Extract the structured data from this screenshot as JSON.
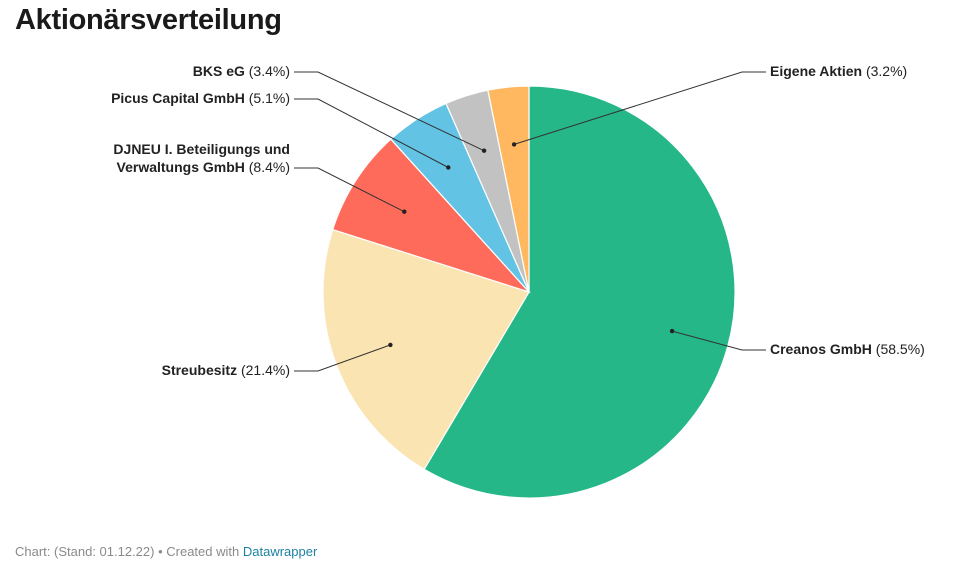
{
  "header": {
    "title": "Aktionärsverteilung"
  },
  "chart_data": {
    "type": "pie",
    "title": "Aktionärsverteilung",
    "slices": [
      {
        "label": "Creanos GmbH",
        "value": 58.5,
        "value_text": "(58.5%)",
        "color": "#25b787"
      },
      {
        "label": "Streubesitz",
        "value": 21.4,
        "value_text": "(21.4%)",
        "color": "#fae4b1"
      },
      {
        "label": "DJNEU I. Beteiligungs und Verwaltungs GmbH",
        "label_lines": [
          "DJNEU I. Beteiligungs und",
          "Verwaltungs GmbH"
        ],
        "value": 8.4,
        "value_text": "(8.4%)",
        "color": "#ff6b5b"
      },
      {
        "label": "Picus Capital GmbH",
        "value": 5.1,
        "value_text": "(5.1%)",
        "color": "#62c3e5"
      },
      {
        "label": "BKS eG",
        "value": 3.4,
        "value_text": "(3.4%)",
        "color": "#c2c2c2"
      },
      {
        "label": "Eigene Aktien",
        "value": 3.2,
        "value_text": "(3.2%)",
        "color": "#ffb860"
      }
    ]
  },
  "footer": {
    "prefix": "Chart: (Stand: 01.12.22) • Created with",
    "link": "Datawrapper"
  }
}
